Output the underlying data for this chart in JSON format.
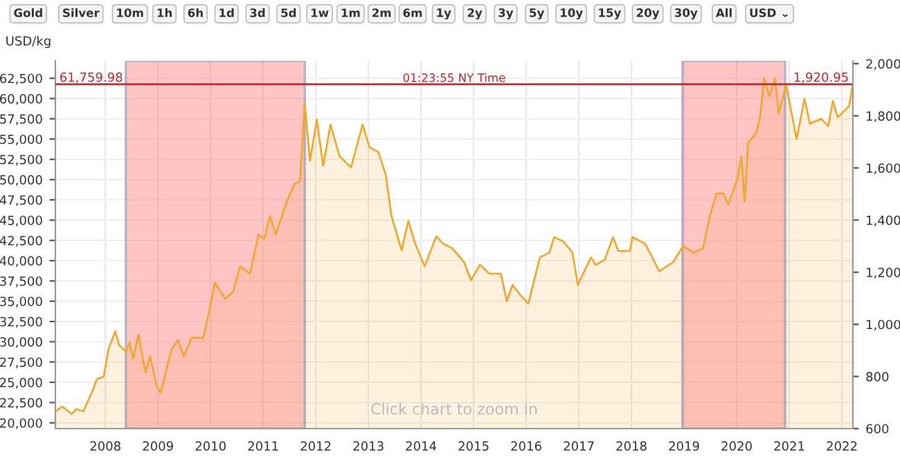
{
  "chart_data": {
    "type": "area",
    "ylabel": "USD/kg",
    "annotations": [
      "01:23:55 NY Time",
      "1,920.95",
      "Click chart to zoom in",
      "Gold",
      "Silver",
      "10m",
      "1h",
      "6h",
      "1d",
      "3d",
      "5d",
      "1w",
      "1m",
      "2m",
      "6m",
      "1y",
      "2y",
      "3y",
      "5y",
      "10y",
      "15y",
      "20y",
      "30y",
      "All",
      "USD ⌄"
    ],
    "x": [
      2007.05,
      2007.18,
      2007.36,
      2007.45,
      2007.58,
      2007.76,
      2007.84,
      2007.97,
      2008.06,
      2008.19,
      2008.26,
      2008.39,
      2008.46,
      2008.53,
      2008.63,
      2008.76,
      2008.85,
      2008.98,
      2009.05,
      2009.18,
      2009.26,
      2009.38,
      2009.49,
      2009.64,
      2009.86,
      2009.99,
      2010.08,
      2010.28,
      2010.43,
      2010.56,
      2010.75,
      2010.91,
      2011.02,
      2011.13,
      2011.24,
      2011.37,
      2011.48,
      2011.6,
      2011.7,
      2011.79,
      2011.89,
      2012.02,
      2012.14,
      2012.28,
      2012.45,
      2012.67,
      2012.89,
      2013.02,
      2013.19,
      2013.33,
      2013.44,
      2013.63,
      2013.76,
      2013.89,
      2014.07,
      2014.29,
      2014.42,
      2014.6,
      2014.82,
      2014.95,
      2015.12,
      2015.3,
      2015.52,
      2015.63,
      2015.74,
      2015.87,
      2016.04,
      2016.26,
      2016.44,
      2016.53,
      2016.7,
      2016.88,
      2016.98,
      2017.23,
      2017.32,
      2017.49,
      2017.65,
      2017.75,
      2017.97,
      2018.02,
      2018.26,
      2018.53,
      2018.79,
      2018.98,
      2019.18,
      2019.36,
      2019.49,
      2019.62,
      2019.75,
      2019.84,
      2020.01,
      2020.09,
      2020.15,
      2020.22,
      2020.37,
      2020.45,
      2020.52,
      2020.62,
      2020.73,
      2020.8,
      2020.94,
      2021.14,
      2021.29,
      2021.39,
      2021.61,
      2021.74,
      2021.83,
      2021.92,
      2022.05,
      2022.14,
      2022.21
    ],
    "series": [
      {
        "color": "#f0a830",
        "values": [
          21400,
          22000,
          21100,
          21700,
          21400,
          24000,
          25400,
          25700,
          29100,
          31300,
          29600,
          28800,
          29900,
          27900,
          30900,
          26200,
          28200,
          24500,
          23700,
          27100,
          29100,
          30200,
          28200,
          30500,
          30500,
          34200,
          37300,
          35300,
          36200,
          39300,
          38400,
          43200,
          42700,
          45500,
          43200,
          45800,
          47800,
          49500,
          49800,
          59400,
          52300,
          57400,
          51700,
          56800,
          52900,
          51500,
          56800,
          54000,
          53400,
          50600,
          45500,
          41300,
          44900,
          42100,
          39300,
          43000,
          42100,
          41500,
          39800,
          37600,
          39500,
          38400,
          38400,
          35000,
          37000,
          35900,
          34700,
          40400,
          41000,
          42900,
          42400,
          41000,
          37000,
          40400,
          39500,
          40100,
          42900,
          41200,
          41200,
          42900,
          42100,
          38700,
          39800,
          41800,
          41000,
          41500,
          45500,
          48300,
          48300,
          46900,
          50000,
          52900,
          47300,
          54600,
          55700,
          57900,
          62500,
          60300,
          62500,
          58200,
          61700,
          55000,
          60000,
          56900,
          57500,
          56600,
          59700,
          57700,
          58500,
          59100,
          61800
        ]
      }
    ],
    "xlim": [
      2007.05,
      2022.21
    ],
    "xticks": [
      2008,
      2009,
      2010,
      2011,
      2012,
      2013,
      2014,
      2015,
      2016,
      2017,
      2018,
      2019,
      2020,
      2021,
      2022
    ],
    "ylim": [
      19290,
      64650
    ],
    "yticks": [
      {
        "value": 20000,
        "label": "20,000"
      },
      {
        "value": 22500,
        "label": "22,500"
      },
      {
        "value": 25000,
        "label": "25,000"
      },
      {
        "value": 27500,
        "label": "27,500"
      },
      {
        "value": 30000,
        "label": "30,000"
      },
      {
        "value": 32500,
        "label": "32,500"
      },
      {
        "value": 35000,
        "label": "35,000"
      },
      {
        "value": 37500,
        "label": "37,500"
      },
      {
        "value": 40000,
        "label": "40,000"
      },
      {
        "value": 42500,
        "label": "42,500"
      },
      {
        "value": 45000,
        "label": "45,000"
      },
      {
        "value": 47500,
        "label": "47,500"
      },
      {
        "value": 50000,
        "label": "50,000"
      },
      {
        "value": 52500,
        "label": "52,500"
      },
      {
        "value": 55000,
        "label": "55,000"
      },
      {
        "value": 57500,
        "label": "57,500"
      },
      {
        "value": 60000,
        "label": "60,000"
      },
      {
        "value": 62500,
        "label": "62,500"
      }
    ],
    "y2lim": [
      600,
      2011
    ],
    "y2ticks": [
      600,
      800,
      {
        "value": 1000,
        "label": "1,000"
      },
      {
        "value": 1200,
        "label": "1,200"
      },
      {
        "value": 1400,
        "label": "1,400"
      },
      {
        "value": 1600,
        "label": "1,600"
      },
      {
        "value": 1800,
        "label": "1,800"
      },
      {
        "value": 2000,
        "label": "2,000"
      }
    ],
    "ref_lines": [
      {
        "axis": "y",
        "value": 61759.98,
        "label": "61,759.98",
        "color": "#c0282d"
      }
    ],
    "bands": [
      {
        "axis": "x",
        "from": 2008.39,
        "to": 2011.79,
        "color": "#ff8080"
      },
      {
        "axis": "x",
        "from": 2018.97,
        "to": 2020.92,
        "color": "#ff8080"
      }
    ],
    "grid": true
  }
}
